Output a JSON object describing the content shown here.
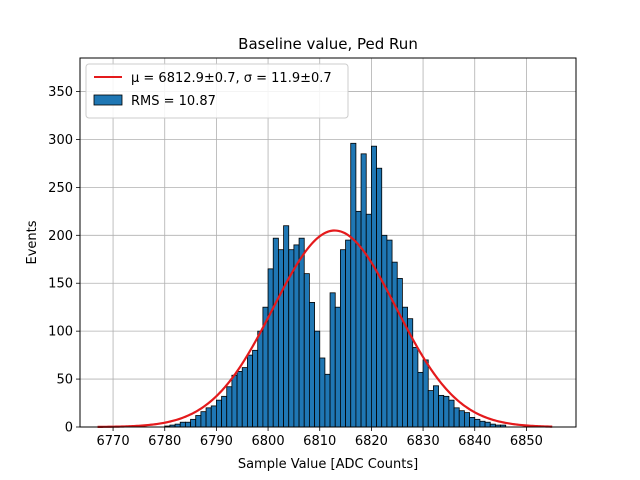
{
  "chart_data": {
    "type": "bar",
    "title": "Baseline value, Ped Run",
    "xlabel": "Sample Value [ADC Counts]",
    "ylabel": "Events",
    "xlim": [
      6763.6,
      6859.6
    ],
    "ylim": [
      0,
      385
    ],
    "xticks": [
      6770,
      6780,
      6790,
      6800,
      6810,
      6820,
      6830,
      6840,
      6850
    ],
    "yticks": [
      0,
      50,
      100,
      150,
      200,
      250,
      300,
      350
    ],
    "grid": true,
    "legend_position": "top-left",
    "bin_width": 1,
    "hist_start": 6780,
    "histogram": {
      "name": "RMS = 10.87",
      "color": "#1f77b4",
      "edgecolor": "#000000",
      "values": [
        1,
        2,
        3,
        5,
        5,
        8,
        12,
        16,
        20,
        22,
        28,
        32,
        42,
        54,
        58,
        62,
        75,
        80,
        100,
        125,
        165,
        197,
        185,
        210,
        185,
        190,
        197,
        160,
        130,
        100,
        72,
        55,
        140,
        125,
        185,
        195,
        296,
        225,
        285,
        222,
        293,
        270,
        200,
        195,
        172,
        155,
        125,
        113,
        83,
        57,
        70,
        38,
        43,
        33,
        32,
        28,
        20,
        17,
        15,
        10,
        8,
        6,
        5,
        3,
        2,
        2
      ]
    },
    "fit": {
      "name_prefix": "μ = 6812.9±0.7, ",
      "name_sigma": "σ = 11.9±0.7",
      "color": "#e41a1c",
      "mu": 6812.9,
      "sigma": 11.9,
      "amplitude": 205,
      "x_range": [
        6767,
        6855
      ]
    }
  }
}
